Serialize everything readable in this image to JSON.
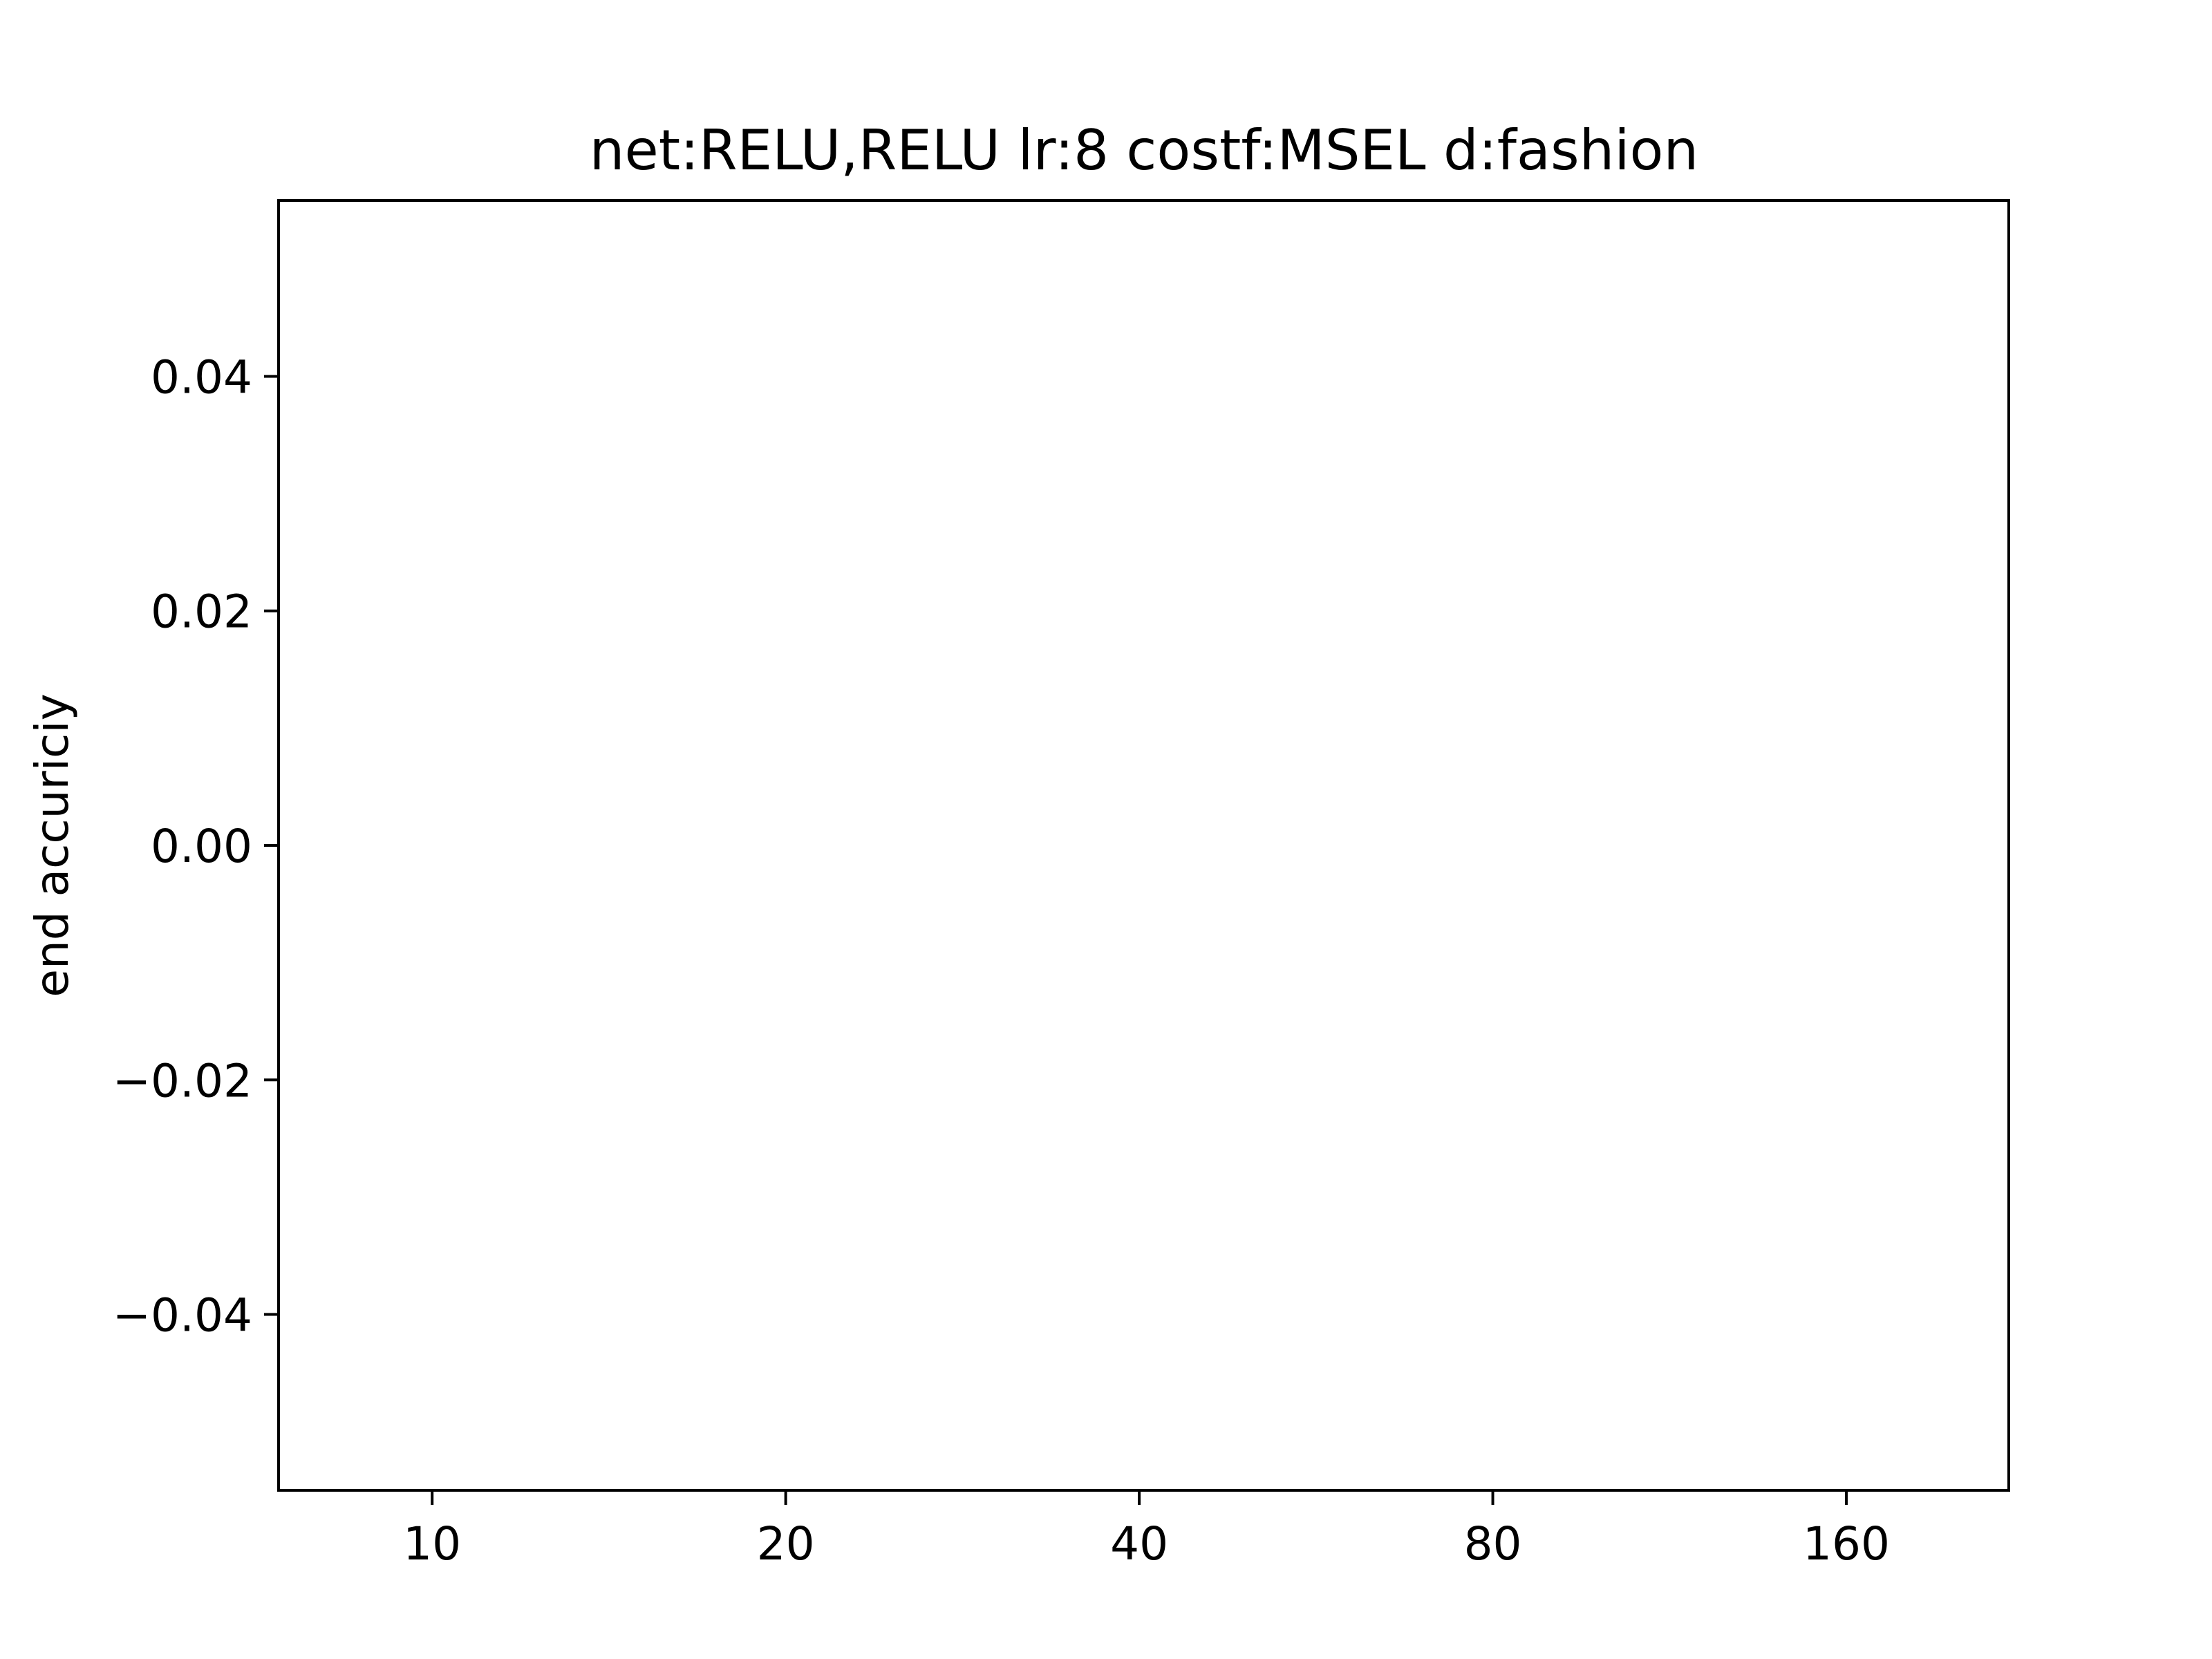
{
  "chart_data": {
    "type": "line",
    "title": "net:RELU,RELU lr:8 costf:MSEL d:fashion",
    "xlabel": "",
    "ylabel": "end accuriciy",
    "x_scale": "log2",
    "x_ticks": [
      10,
      20,
      40,
      80,
      160
    ],
    "x_tick_labels": [
      "10",
      "20",
      "40",
      "80",
      "160"
    ],
    "xlim": [
      7.4,
      220
    ],
    "y_ticks": [
      -0.04,
      -0.02,
      0.0,
      0.02,
      0.04
    ],
    "y_tick_labels": [
      "−0.04",
      "−0.02",
      "0.00",
      "0.02",
      "0.04"
    ],
    "ylim": [
      -0.055,
      0.055
    ],
    "series": [],
    "grid": false,
    "legend": "none"
  }
}
